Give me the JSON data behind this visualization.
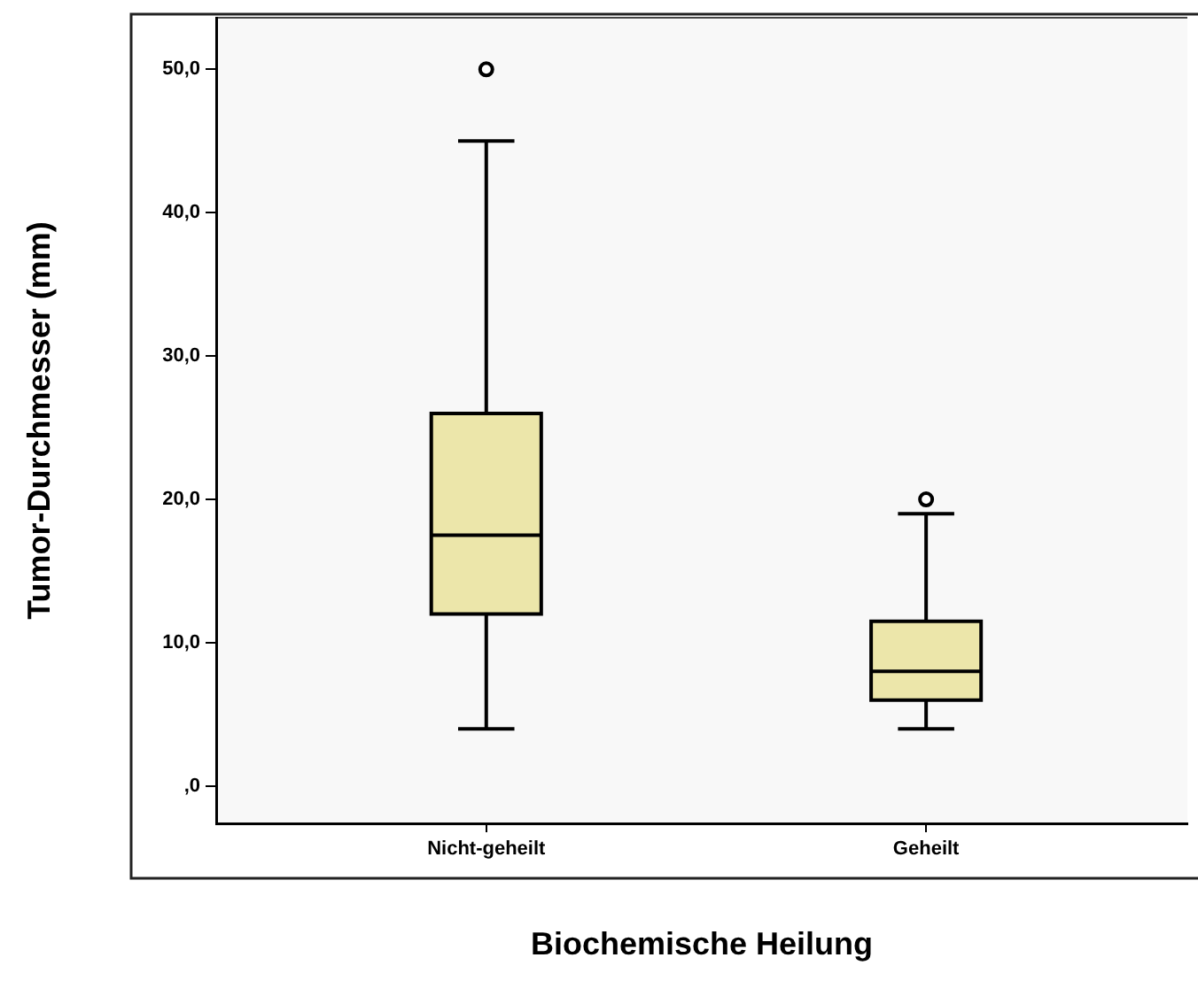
{
  "chart_data": {
    "type": "box",
    "xlabel": "Biochemische Heilung",
    "ylabel": "Tumor-Durchmesser (mm)",
    "categories": [
      "Nicht-geheilt",
      "Geheilt"
    ],
    "boxes": [
      {
        "low": 4,
        "q1": 12,
        "median": 17.5,
        "q3": 26,
        "high": 45,
        "outliers": [
          50
        ]
      },
      {
        "low": 4,
        "q1": 6,
        "median": 8,
        "q3": 11.5,
        "high": 19,
        "outliers": [
          20
        ]
      }
    ],
    "color": "#ece6aa",
    "ylim": [
      -2.6,
      53.6
    ],
    "yticks": [
      {
        "value": 0,
        "label": ",0"
      },
      {
        "value": 10,
        "label": "10,0"
      },
      {
        "value": 20,
        "label": "20,0"
      },
      {
        "value": 30,
        "label": "30,0"
      },
      {
        "value": 40,
        "label": "40,0"
      },
      {
        "value": 50,
        "label": "50,0"
      }
    ],
    "grid": false,
    "legend": false
  }
}
